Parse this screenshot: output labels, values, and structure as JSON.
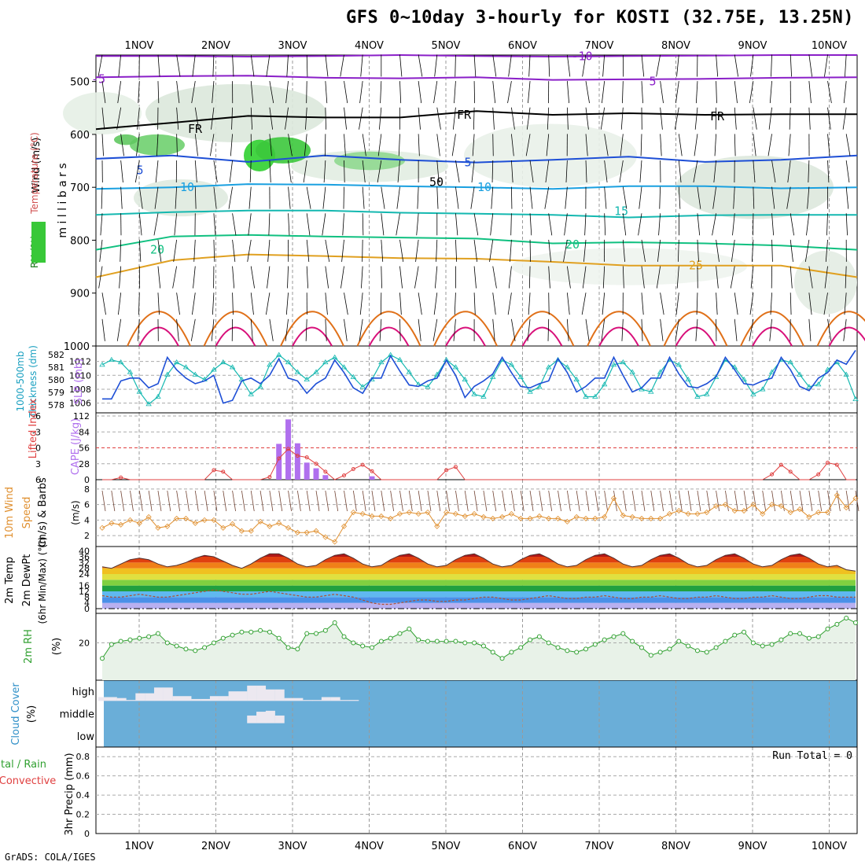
{
  "title": "GFS 0~10day 3-hourly for KOSTI (32.75E, 13.25N)",
  "footer": "GrADS: COLA/IGES",
  "colors": {
    "purple": "#8a1fc8",
    "black": "#000000",
    "blue": "#1e4fd6",
    "lightblue": "#1aa0e0",
    "teal": "#14b8b0",
    "green": "#10c080",
    "gold": "#e0a020",
    "orange": "#e07018",
    "magenta": "#d8107a",
    "cape": "#b070ee",
    "lifted": "#e04040",
    "wind10": "#e09030",
    "rh2m": "#30a030",
    "cloudbg": "#6aaed8",
    "cloudfill": "#ece8f0"
  },
  "chart_data": [
    {
      "type": "heatmap",
      "panel": "upper_air",
      "x_labels": [
        "1NOV",
        "2NOV",
        "3NOV",
        "4NOV",
        "5NOV",
        "6NOV",
        "7NOV",
        "8NOV",
        "9NOV",
        "10NOV"
      ],
      "ylabel": "m i l l i b a r s",
      "ylabel_parts": [
        "RH (%)",
        "Temperature (°C)",
        "Wind (m/s)"
      ],
      "y_ticks": [
        500,
        600,
        700,
        800,
        900,
        1000
      ],
      "ylim": [
        450,
        1000
      ],
      "contour_labels": [
        "-10",
        "-5",
        "5",
        "FR",
        "5",
        "10",
        "15",
        "20",
        "25",
        "50"
      ],
      "temperature_isotherms": [
        {
          "label": "-10",
          "color": "purple",
          "p": [
            452,
            452,
            453,
            452,
            450,
            452,
            453,
            452,
            451,
            450,
            450
          ]
        },
        {
          "label": "-5",
          "color": "purple",
          "p": [
            492,
            490,
            489,
            493,
            494,
            492,
            497,
            496,
            495,
            493,
            492
          ]
        },
        {
          "label": "FR",
          "color": "black",
          "p": [
            590,
            578,
            565,
            568,
            568,
            556,
            563,
            560,
            563,
            562,
            562
          ]
        },
        {
          "label": "5",
          "color": "blue",
          "p": [
            646,
            640,
            652,
            640,
            648,
            653,
            648,
            642,
            652,
            648,
            640
          ]
        },
        {
          "label": "10",
          "color": "lightblue",
          "p": [
            703,
            700,
            694,
            695,
            698,
            700,
            703,
            698,
            698,
            702,
            700
          ]
        },
        {
          "label": "15",
          "color": "teal",
          "p": [
            752,
            747,
            744,
            744,
            748,
            750,
            752,
            757,
            753,
            752,
            752
          ]
        },
        {
          "label": "20",
          "color": "green",
          "p": [
            818,
            793,
            790,
            793,
            795,
            797,
            806,
            804,
            806,
            810,
            818
          ]
        },
        {
          "label": "25",
          "color": "gold",
          "p": [
            870,
            838,
            827,
            830,
            834,
            835,
            841,
            848,
            848,
            848,
            870
          ]
        }
      ]
    },
    {
      "type": "line",
      "panel": "thickness_slp",
      "ylabel_left": "1000-500mb Thickness (dm)",
      "ylabel_right": "SLP (mb)",
      "thickness_ticks": [
        "582",
        "581",
        "580",
        "579",
        "578"
      ],
      "slp_ticks": [
        "1012",
        "1010",
        "1008",
        "1006"
      ],
      "series": [
        {
          "name": "SLP (mb)",
          "color": "blue",
          "values": [
            1006.6,
            1006.6,
            1009.2,
            1009.6,
            1009.6,
            1008.2,
            1008.8,
            1012.6,
            1010.8,
            1009.6,
            1008.8,
            1009.2,
            1010.0,
            1006.0,
            1006.4,
            1009.2,
            1009.6,
            1008.8,
            1010.0,
            1012.4,
            1009.6,
            1009.2,
            1007.4,
            1008.8,
            1009.6,
            1012.2,
            1010.4,
            1008.2,
            1007.4,
            1009.6,
            1009.6,
            1012.8,
            1010.6,
            1008.6,
            1008.4,
            1009.2,
            1009.6,
            1012.2,
            1010.0,
            1006.8,
            1008.4,
            1009.2,
            1010.2,
            1012.6,
            1010.4,
            1008.4,
            1008.2,
            1008.8,
            1009.2,
            1012.4,
            1010.4,
            1007.6,
            1008.4,
            1009.6,
            1009.6,
            1012.6,
            1010.0,
            1007.6,
            1008.2,
            1009.6,
            1009.6,
            1012.6,
            1010.2,
            1008.4,
            1008.2,
            1008.8,
            1009.8,
            1012.6,
            1010.8,
            1008.8,
            1008.6,
            1009.2,
            1009.6,
            1012.6,
            1010.8,
            1008.4,
            1007.8,
            1009.6,
            1010.4,
            1012.2,
            1011.6,
            1013.6
          ]
        },
        {
          "name": "1000-500mb Thickness (dm)",
          "color": "teal",
          "values": [
            581.2,
            581.6,
            581.4,
            580.6,
            579.0,
            578.0,
            578.6,
            580.4,
            581.4,
            581.0,
            580.4,
            580.0,
            580.8,
            581.4,
            581.0,
            580.0,
            578.8,
            579.4,
            581.2,
            582.0,
            581.4,
            580.6,
            580.0,
            580.6,
            581.4,
            581.8,
            581.0,
            580.2,
            579.4,
            580.0,
            581.4,
            582.0,
            581.6,
            580.6,
            579.6,
            579.4,
            580.4,
            581.6,
            581.0,
            580.0,
            578.8,
            578.6,
            580.2,
            581.6,
            581.2,
            580.2,
            579.0,
            579.4,
            581.0,
            581.6,
            581.0,
            580.0,
            578.6,
            578.6,
            579.6,
            581.2,
            581.4,
            580.6,
            579.2,
            579.0,
            580.6,
            581.6,
            581.2,
            580.0,
            578.6,
            578.8,
            580.2,
            581.6,
            581.0,
            580.0,
            578.8,
            579.2,
            580.6,
            581.6,
            581.4,
            580.4,
            579.4,
            579.6,
            580.8,
            581.4,
            580.4,
            578.4
          ]
        }
      ]
    },
    {
      "type": "bar",
      "panel": "cape_li",
      "ylabel_left": "Lifted Index",
      "ylabel_right": "CAPE (J/kg)",
      "li_ticks": [
        "-6",
        "-3",
        "0",
        "3",
        "6"
      ],
      "cape_ticks": [
        "112",
        "84",
        "56",
        "28",
        "0"
      ],
      "cape_values": [
        0,
        0,
        0,
        0,
        0,
        0,
        0,
        0,
        0,
        0,
        0,
        0,
        0,
        0,
        0,
        0,
        0,
        0,
        0,
        63,
        106,
        64,
        30,
        20,
        8,
        0,
        0,
        0,
        0,
        6,
        0,
        0,
        0,
        0,
        0,
        0,
        0,
        0,
        0,
        0,
        0,
        0,
        0,
        0,
        0,
        0,
        0,
        0,
        0,
        0,
        0,
        0,
        0,
        0,
        0,
        0,
        0,
        0,
        0,
        0,
        0,
        0,
        0,
        0,
        0,
        0,
        0,
        0,
        0,
        0,
        0,
        0,
        0,
        0,
        0,
        0,
        0,
        0,
        0,
        0,
        0,
        0
      ],
      "li_values": [
        6,
        6,
        5.6,
        6,
        6,
        6,
        6,
        6,
        6,
        6,
        6,
        6,
        4.2,
        4.5,
        6,
        6,
        6,
        6,
        5.5,
        2.0,
        0.2,
        1.5,
        1.8,
        3.0,
        4.5,
        6,
        5.2,
        4.0,
        3.2,
        4.4,
        6,
        6,
        6,
        6,
        6,
        6,
        6,
        4.2,
        3.6,
        6,
        6,
        6,
        6,
        6,
        6,
        6,
        6,
        6,
        6,
        6,
        6,
        6,
        6,
        6,
        6,
        6,
        6,
        6,
        6,
        6,
        6,
        6,
        6,
        6,
        6,
        6,
        6,
        6,
        6,
        6,
        6,
        6,
        5.0,
        3.2,
        4.5,
        6,
        6,
        5.0,
        2.8,
        3.2,
        6,
        6
      ],
      "series": [
        {
          "name": "CAPE (J/kg)",
          "color": "cape"
        },
        {
          "name": "Lifted Index",
          "color": "lifted"
        }
      ]
    },
    {
      "type": "line",
      "panel": "wind10m",
      "ylabel": "10m Wind Speed (m/s) & Barbs",
      "ylabel_parts": [
        "10m Wind",
        "Speed",
        "(m/s) & Barbs"
      ],
      "y_ticks": [
        "8",
        "6",
        "4",
        "2"
      ],
      "series": [
        {
          "name": "10m Wind Speed",
          "color": "wind10",
          "values": [
            3.0,
            3.6,
            3.4,
            4.0,
            3.6,
            4.4,
            3.0,
            3.2,
            4.2,
            4.2,
            3.6,
            4.0,
            4.0,
            3.0,
            3.5,
            2.6,
            2.6,
            3.8,
            3.2,
            3.6,
            3.0,
            2.4,
            2.4,
            2.6,
            1.8,
            1.2,
            3.2,
            5.0,
            4.8,
            4.5,
            4.5,
            4.2,
            4.8,
            5.0,
            4.8,
            5.0,
            3.2,
            5.0,
            4.8,
            4.5,
            4.8,
            4.4,
            4.2,
            4.4,
            4.8,
            4.2,
            4.2,
            4.5,
            4.2,
            4.2,
            3.8,
            4.4,
            4.2,
            4.2,
            4.4,
            6.8,
            4.6,
            4.4,
            4.2,
            4.2,
            4.2,
            4.8,
            5.2,
            4.8,
            4.8,
            5.0,
            5.8,
            6.0,
            5.2,
            5.2,
            6.0,
            4.8,
            6.0,
            5.8,
            5.0,
            5.4,
            4.4,
            5.0,
            5.0,
            7.2,
            5.6,
            6.8
          ]
        }
      ]
    },
    {
      "type": "area",
      "panel": "temp_dewpt",
      "ylabel": "2m Temp 2m DewPt (6hr Min/Max) (°C)",
      "ylabel_parts": [
        "2m Temp",
        "2m DewPt",
        "(6hr Min/Max) (°C)"
      ],
      "y_ticks": [
        "40",
        "36",
        "32",
        "28",
        "24",
        "16",
        "12",
        "8",
        "4",
        "0"
      ],
      "series": [
        {
          "name": "2m Temp",
          "values": [
            29,
            28,
            31,
            34,
            35,
            34,
            31,
            29,
            30,
            32,
            35,
            37,
            36,
            33,
            30,
            28,
            31,
            35,
            38,
            38,
            35,
            31,
            29,
            30,
            34,
            37,
            38,
            35,
            31,
            29,
            30,
            34,
            37,
            38,
            35,
            31,
            29,
            30,
            34,
            37,
            38,
            35,
            31,
            29,
            30,
            34,
            37,
            38,
            35,
            31,
            29,
            30,
            34,
            37,
            38,
            35,
            31,
            29,
            30,
            34,
            37,
            38,
            35,
            31,
            29,
            30,
            34,
            37,
            38,
            35,
            31,
            29,
            30,
            34,
            37,
            38,
            35,
            31,
            29,
            30,
            27,
            26
          ]
        },
        {
          "name": "2m DewPt",
          "values": [
            9,
            8,
            8,
            9,
            10,
            9,
            8,
            8,
            9,
            10,
            11,
            12,
            13,
            12,
            11,
            10,
            10,
            11,
            12,
            11,
            10,
            9,
            8,
            8,
            9,
            10,
            9,
            8,
            6,
            4,
            3,
            3,
            4,
            5,
            6,
            6,
            5,
            5,
            6,
            6,
            7,
            8,
            8,
            7,
            6,
            6,
            7,
            8,
            9,
            8,
            7,
            7,
            8,
            8,
            9,
            8,
            7,
            7,
            8,
            8,
            9,
            8,
            7,
            7,
            8,
            8,
            9,
            8,
            7,
            7,
            8,
            8,
            9,
            8,
            7,
            7,
            8,
            9,
            9,
            8,
            8,
            8
          ]
        }
      ]
    },
    {
      "type": "area",
      "panel": "rh2m",
      "ylabel": "2m RH (%)",
      "y_ticks": [
        "20"
      ],
      "series": [
        {
          "name": "2m RH",
          "color": "rh2m",
          "values": [
            10,
            19,
            21,
            22,
            23,
            24,
            26,
            20,
            18,
            16,
            15,
            17,
            20,
            23,
            25,
            27,
            27,
            28,
            27,
            23,
            17,
            16,
            26,
            26,
            28,
            33,
            24,
            20,
            18,
            17,
            21,
            23,
            26,
            29,
            22,
            21,
            21,
            21,
            21,
            20,
            20,
            18,
            14,
            10,
            14,
            17,
            22,
            24,
            20,
            17,
            15,
            14,
            16,
            19,
            22,
            24,
            26,
            21,
            17,
            12,
            14,
            16,
            21,
            18,
            15,
            14,
            17,
            21,
            25,
            27,
            20,
            18,
            19,
            22,
            26,
            26,
            23,
            24,
            29,
            32,
            36,
            33
          ]
        }
      ]
    },
    {
      "type": "bar",
      "panel": "cloud_cover",
      "ylabel": "Cloud Cover (%)",
      "ylabel_parts": [
        "Cloud Cover",
        "(%)"
      ],
      "levels": [
        "high",
        "middle",
        "low"
      ],
      "high": [
        20,
        20,
        15,
        5,
        40,
        40,
        70,
        70,
        25,
        25,
        10,
        10,
        25,
        25,
        50,
        50,
        80,
        80,
        60,
        60,
        15,
        15,
        5,
        5,
        20,
        20,
        5,
        5,
        0,
        0,
        0,
        0,
        0,
        0,
        0,
        0,
        0,
        0,
        0,
        0,
        0,
        0,
        0,
        0,
        0,
        0,
        0,
        0,
        0,
        0,
        0,
        0,
        0,
        0,
        0,
        0,
        0,
        0,
        0,
        0,
        0,
        0,
        0,
        0,
        0,
        0,
        0,
        0,
        0,
        0,
        0,
        0,
        0,
        0,
        0,
        0,
        0,
        0,
        0,
        0,
        0,
        0
      ],
      "middle": [
        0,
        0,
        0,
        0,
        0,
        0,
        0,
        0,
        0,
        0,
        0,
        0,
        0,
        0,
        0,
        0,
        40,
        60,
        65,
        40,
        0,
        0,
        0,
        0,
        0,
        0,
        0,
        0,
        0,
        0,
        0,
        0,
        0,
        0,
        0,
        0,
        0,
        0,
        0,
        0,
        0,
        0,
        0,
        0,
        0,
        0,
        0,
        0,
        0,
        0,
        0,
        0,
        0,
        0,
        0,
        0,
        0,
        0,
        0,
        0,
        0,
        0,
        0,
        0,
        0,
        0,
        0,
        0,
        0,
        0,
        0,
        0,
        0,
        0,
        0,
        0,
        0,
        0,
        0,
        0,
        0,
        0
      ],
      "low": [
        0,
        0,
        0,
        0,
        0,
        0,
        0,
        0,
        0,
        0,
        0,
        0,
        0,
        0,
        0,
        0,
        0,
        0,
        0,
        0,
        0,
        0,
        0,
        0,
        0,
        0,
        0,
        0,
        0,
        0,
        0,
        0,
        0,
        0,
        0,
        0,
        0,
        0,
        0,
        0,
        0,
        0,
        0,
        0,
        0,
        0,
        0,
        0,
        0,
        0,
        0,
        0,
        0,
        0,
        0,
        0,
        0,
        0,
        0,
        0,
        0,
        0,
        0,
        0,
        0,
        0,
        0,
        0,
        0,
        0,
        0,
        0,
        0,
        0,
        0,
        0,
        0,
        0,
        0,
        0,
        0,
        0
      ]
    },
    {
      "type": "bar",
      "panel": "precip",
      "ylabel_left": "Total / Rain Convective",
      "ylabel_parts": [
        "tal / Rain",
        "Convective"
      ],
      "ylabel_right": "3hr Precip (mm)",
      "y_ticks": [
        "0.8",
        "0.6",
        "0.4",
        "0.2",
        "0"
      ],
      "run_total": "Run Total = 0",
      "values": []
    }
  ]
}
